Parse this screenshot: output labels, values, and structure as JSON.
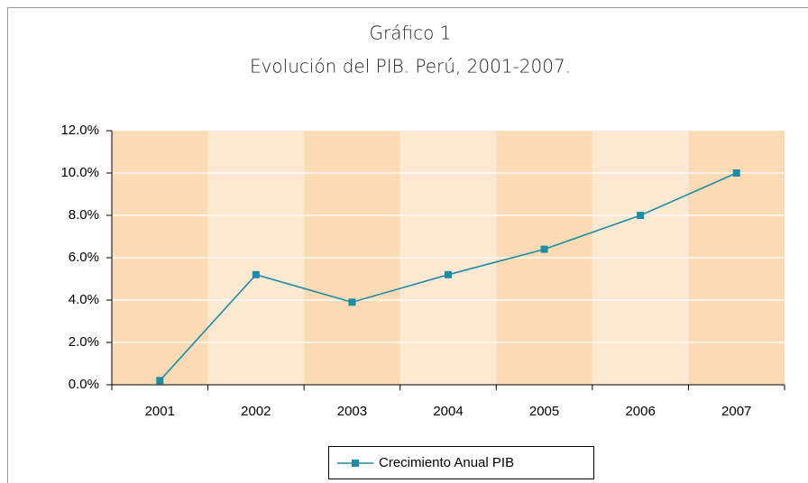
{
  "chart_data": {
    "type": "line",
    "title": "Gráfico 1",
    "subtitle": "Evolución del PIB. Perú, 2001-2007.",
    "categories": [
      "2001",
      "2002",
      "2003",
      "2004",
      "2005",
      "2006",
      "2007"
    ],
    "series": [
      {
        "name": "Crecimiento Anual PIB",
        "color": "#1f8ca6",
        "values": [
          0.2,
          5.2,
          3.9,
          5.2,
          6.4,
          8.0,
          10.0
        ]
      }
    ],
    "ylim": [
      0,
      12
    ],
    "yticks": [
      {
        "value": 0,
        "label": "0.0%"
      },
      {
        "value": 2,
        "label": "2.0%"
      },
      {
        "value": 4,
        "label": "4.0%"
      },
      {
        "value": 6,
        "label": "6.0%"
      },
      {
        "value": 8,
        "label": "8.0%"
      },
      {
        "value": 10,
        "label": "10.0%"
      },
      {
        "value": 12,
        "label": "12.0%"
      }
    ],
    "grid": true,
    "band_colors": [
      "#fbdbb6",
      "#fde8d1"
    ],
    "legend": "bottom"
  }
}
